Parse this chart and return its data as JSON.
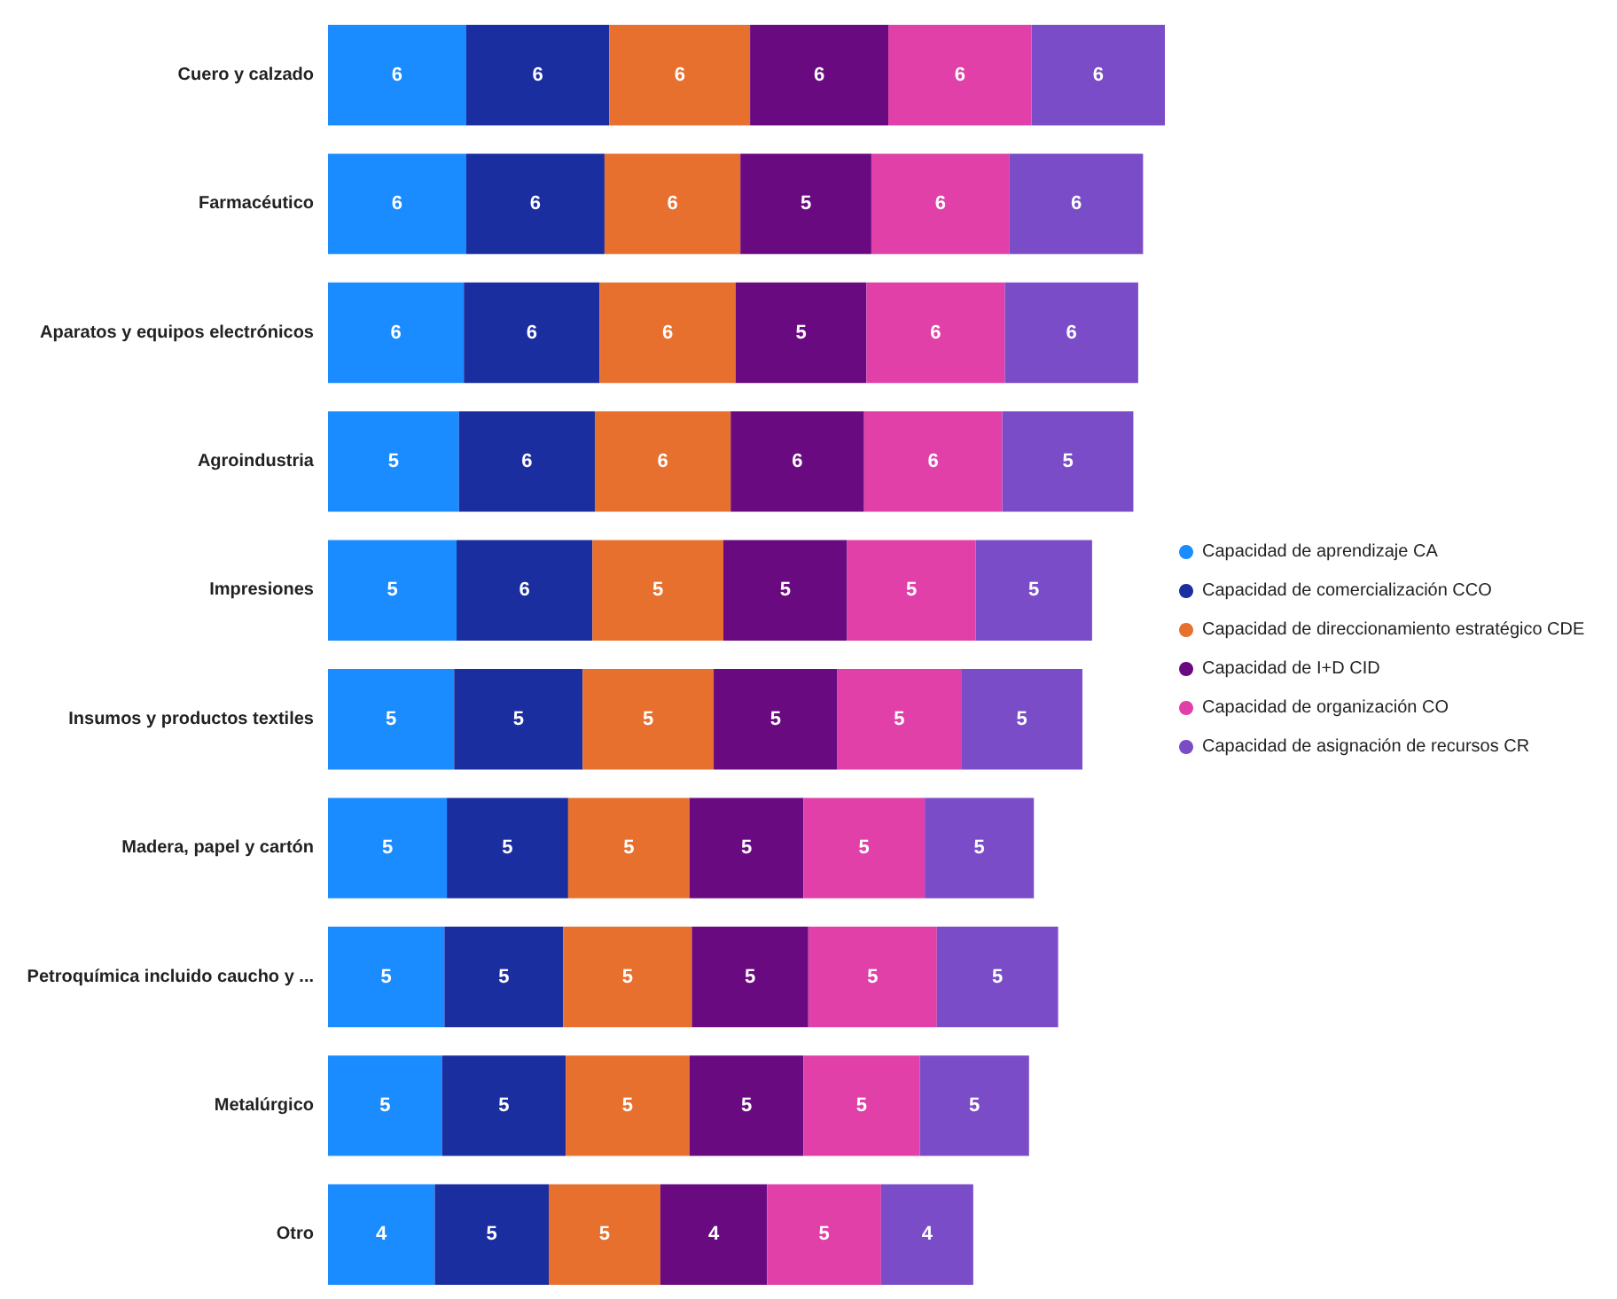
{
  "chart_data": {
    "type": "bar",
    "orientation": "horizontal",
    "stacked": true,
    "legend": "right",
    "categories": [
      "Cuero y calzado",
      "Farmacéutico",
      "Aparatos y equipos electrónicos",
      "Agroindustria",
      "Impresiones",
      "Insumos y productos textiles",
      "Madera, papel y cartón",
      "Petroquímica incluido caucho y ...",
      "Metalúrgico",
      "Otro"
    ],
    "series": [
      {
        "name": "Capacidad de aprendizaje CA",
        "color": "#1a8cff",
        "values": [
          5.7,
          5.7,
          5.6,
          5.4,
          5.3,
          5.2,
          4.9,
          4.8,
          4.7,
          4.4
        ],
        "value_labels": [
          "6",
          "6",
          "6",
          "5",
          "5",
          "5",
          "5",
          "5",
          "5",
          "4"
        ]
      },
      {
        "name": "Capacidad de comercialización CCO",
        "color": "#1a2ea0",
        "values": [
          5.9,
          5.7,
          5.6,
          5.6,
          5.6,
          5.3,
          5.0,
          4.9,
          5.1,
          4.7
        ],
        "value_labels": [
          "6",
          "6",
          "6",
          "6",
          "6",
          "5",
          "5",
          "5",
          "5",
          "5"
        ]
      },
      {
        "name": "Capacidad de direccionamiento estratégico CDE",
        "color": "#e8702f",
        "values": [
          5.8,
          5.6,
          5.6,
          5.6,
          5.4,
          5.4,
          5.0,
          5.3,
          5.1,
          4.6
        ],
        "value_labels": [
          "6",
          "6",
          "6",
          "6",
          "5",
          "5",
          "5",
          "5",
          "5",
          "5"
        ]
      },
      {
        "name": "Capacidad de I+D CID",
        "color": "#6a0a80",
        "values": [
          5.7,
          5.4,
          5.4,
          5.5,
          5.1,
          5.1,
          4.7,
          4.8,
          4.7,
          4.4
        ],
        "value_labels": [
          "6",
          "5",
          "5",
          "6",
          "5",
          "5",
          "5",
          "5",
          "5",
          "4"
        ]
      },
      {
        "name": "Capacidad de organización CO",
        "color": "#e040a8",
        "values": [
          5.9,
          5.7,
          5.7,
          5.7,
          5.3,
          5.1,
          5.0,
          5.3,
          4.8,
          4.7
        ],
        "value_labels": [
          "6",
          "6",
          "6",
          "6",
          "5",
          "5",
          "5",
          "5",
          "5",
          "5"
        ]
      },
      {
        "name": "Capacidad de asignación de recursos CR",
        "color": "#7a4cc8",
        "values": [
          5.5,
          5.5,
          5.5,
          5.4,
          4.8,
          5.0,
          4.5,
          5.0,
          4.5,
          3.8
        ],
        "value_labels": [
          "6",
          "6",
          "6",
          "5",
          "5",
          "5",
          "5",
          "5",
          "5",
          "4"
        ]
      }
    ]
  }
}
